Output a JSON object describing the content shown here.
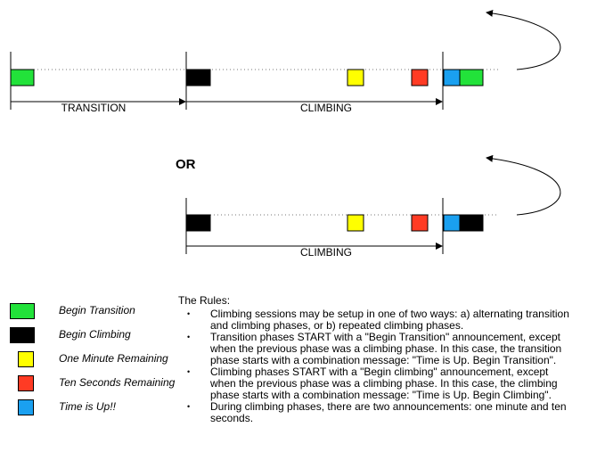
{
  "timeline_top": {
    "phases": [
      {
        "label": "TRANSITION"
      },
      {
        "label": "CLIMBING"
      }
    ]
  },
  "or_label": "OR",
  "timeline_bottom": {
    "phases": [
      {
        "label": "CLIMBING"
      }
    ]
  },
  "legend": [
    {
      "name": "begin-transition",
      "label": "Begin Transition",
      "color": "#22e23a"
    },
    {
      "name": "begin-climbing",
      "label": "Begin Climbing",
      "color": "#000000"
    },
    {
      "name": "one-minute-remaining",
      "label": "One Minute Remaining",
      "color": "#ffff00"
    },
    {
      "name": "ten-seconds-remaining",
      "label": "Ten Seconds Remaining",
      "color": "#ff3b24"
    },
    {
      "name": "time-is-up",
      "label": "Time is Up!!",
      "color": "#1aa0f0"
    }
  ],
  "rules": {
    "title": "The Rules:",
    "items": [
      "Climbing sessions may be setup in one of two ways: a) alternating transition and climbing phases, or b) repeated climbing phases.",
      "Transition phases START with a \"Begin Transition\" announcement, except when the previous phase was a climbing phase. In this case, the transition phase starts with a combination message: \"Time is Up. Begin Transition\".",
      "Climbing phases START with a \"Begin climbing\" announcement, except when the previous phase was a climbing phase.  In this case, the climbing phase starts with a combination message: \"Time is Up. Begin Climbing\".",
      "During climbing phases, there are two announcements: one minute and ten seconds."
    ]
  }
}
